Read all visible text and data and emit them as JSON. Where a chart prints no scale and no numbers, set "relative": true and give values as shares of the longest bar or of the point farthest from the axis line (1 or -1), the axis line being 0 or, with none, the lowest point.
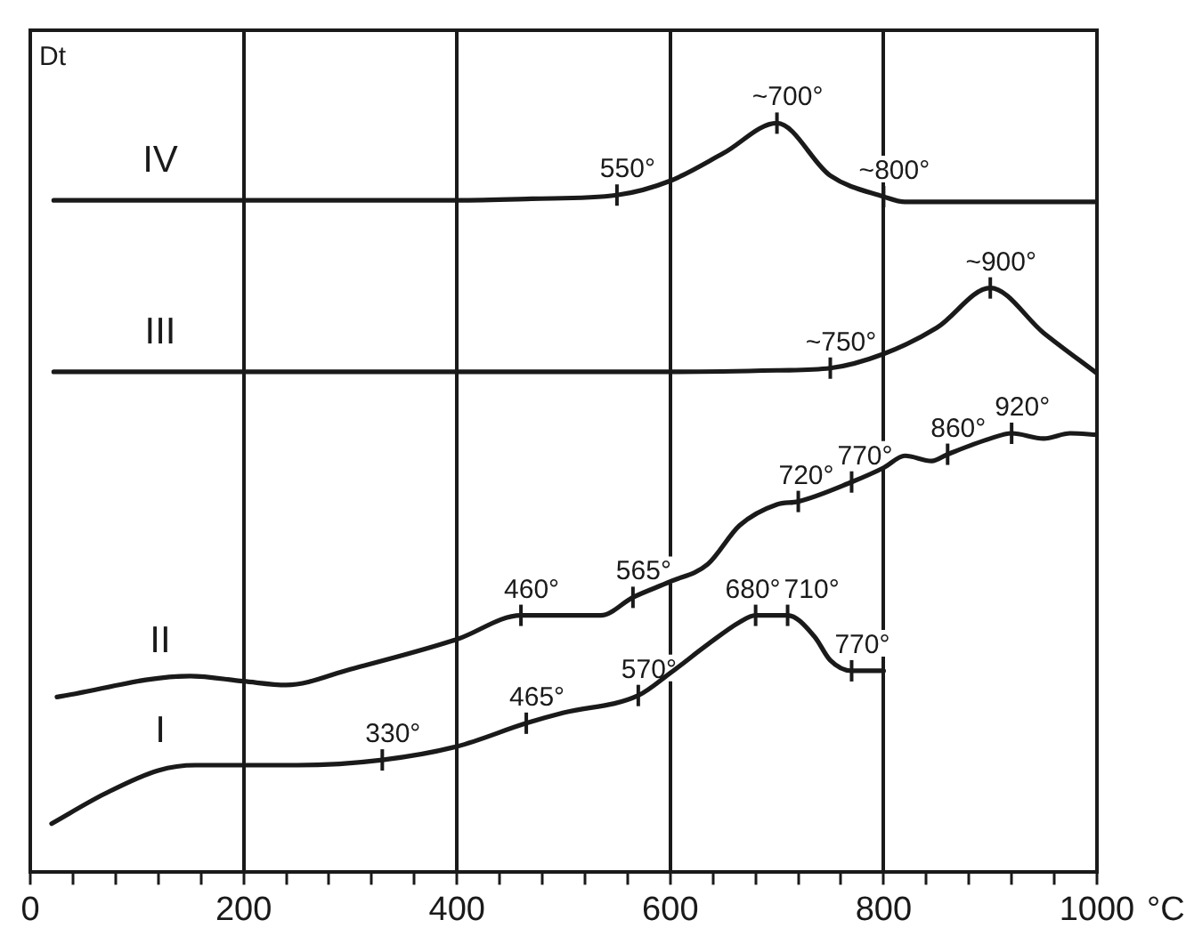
{
  "chart_data": {
    "type": "line",
    "relative": true,
    "ylabel": "Dt",
    "xlabel": "°C",
    "xlim": [
      0,
      1000
    ],
    "xticks": [
      0,
      {
        "value": 40,
        "label": null
      },
      {
        "value": 80,
        "label": null
      },
      {
        "value": 120,
        "label": null
      },
      {
        "value": 160,
        "label": null
      },
      200,
      {
        "value": 240,
        "label": null
      },
      {
        "value": 280,
        "label": null
      },
      {
        "value": 320,
        "label": null
      },
      {
        "value": 360,
        "label": null
      },
      400,
      {
        "value": 440,
        "label": null
      },
      {
        "value": 480,
        "label": null
      },
      {
        "value": 520,
        "label": null
      },
      {
        "value": 560,
        "label": null
      },
      600,
      {
        "value": 640,
        "label": null
      },
      {
        "value": 680,
        "label": null
      },
      {
        "value": 720,
        "label": null
      },
      {
        "value": 760,
        "label": null
      },
      800,
      {
        "value": 840,
        "label": null
      },
      {
        "value": 880,
        "label": null
      },
      {
        "value": 920,
        "label": null
      },
      {
        "value": 960,
        "label": null
      },
      1000
    ],
    "grid": "x",
    "legend": false,
    "marker": "none",
    "line_style": "solid",
    "series": [
      {
        "name": "IV",
        "color": "#1a1a1a",
        "x": [
          22,
          200,
          400,
          470,
          550,
          600,
          650,
          700,
          750,
          800,
          820,
          1000
        ],
        "values": [
          0.897,
          0.897,
          0.897,
          0.899,
          0.904,
          0.923,
          0.96,
          1.0,
          0.93,
          0.902,
          0.895,
          0.895
        ]
      },
      {
        "name": "III",
        "color": "#1a1a1a",
        "x": [
          22,
          200,
          400,
          600,
          700,
          750,
          800,
          850,
          900,
          950,
          1000
        ],
        "values": [
          0.668,
          0.668,
          0.668,
          0.668,
          0.67,
          0.673,
          0.692,
          0.727,
          0.78,
          0.72,
          0.666
        ]
      },
      {
        "name": "II",
        "color": "#1a1a1a",
        "x": [
          25,
          150,
          200,
          240,
          300,
          400,
          460,
          535,
          565,
          600,
          635,
          665,
          700,
          720,
          770,
          800,
          820,
          845,
          860,
          900,
          920,
          950,
          975,
          1000
        ],
        "values": [
          0.234,
          0.262,
          0.255,
          0.25,
          0.271,
          0.311,
          0.343,
          0.343,
          0.367,
          0.388,
          0.411,
          0.463,
          0.491,
          0.495,
          0.521,
          0.54,
          0.556,
          0.549,
          0.558,
          0.579,
          0.586,
          0.579,
          0.586,
          0.584
        ]
      },
      {
        "name": "I",
        "color": "#1a1a1a",
        "x": [
          20,
          70,
          120,
          155,
          200,
          250,
          330,
          400,
          465,
          500,
          570,
          600,
          635,
          665,
          680,
          710,
          735,
          750,
          770,
          800
        ],
        "values": [
          0.065,
          0.105,
          0.136,
          0.143,
          0.143,
          0.143,
          0.15,
          0.168,
          0.199,
          0.213,
          0.236,
          0.266,
          0.304,
          0.334,
          0.343,
          0.343,
          0.315,
          0.283,
          0.269,
          0.269
        ]
      }
    ],
    "annotations": [
      {
        "text": "550°",
        "x": 550,
        "y": 0.904
      },
      {
        "text": "~700°",
        "x": 700,
        "y": 1.0
      },
      {
        "text": "~800°",
        "x": 800,
        "y": 0.902
      },
      {
        "text": "~750°",
        "x": 750,
        "y": 0.673
      },
      {
        "text": "~900°",
        "x": 900,
        "y": 0.78
      },
      {
        "text": "460°",
        "x": 460,
        "y": 0.343
      },
      {
        "text": "565°",
        "x": 565,
        "y": 0.367
      },
      {
        "text": "720°",
        "x": 720,
        "y": 0.495
      },
      {
        "text": "770°",
        "x": 770,
        "y": 0.521
      },
      {
        "text": "860°",
        "x": 860,
        "y": 0.558
      },
      {
        "text": "920°",
        "x": 920,
        "y": 0.586
      },
      {
        "text": "330°",
        "x": 330,
        "y": 0.15
      },
      {
        "text": "465°",
        "x": 465,
        "y": 0.199
      },
      {
        "text": "570°",
        "x": 570,
        "y": 0.236
      },
      {
        "text": "680°",
        "x": 680,
        "y": 0.343
      },
      {
        "text": "710°",
        "x": 710,
        "y": 0.343
      },
      {
        "text": "770°",
        "x": 770,
        "y": 0.269
      }
    ]
  }
}
